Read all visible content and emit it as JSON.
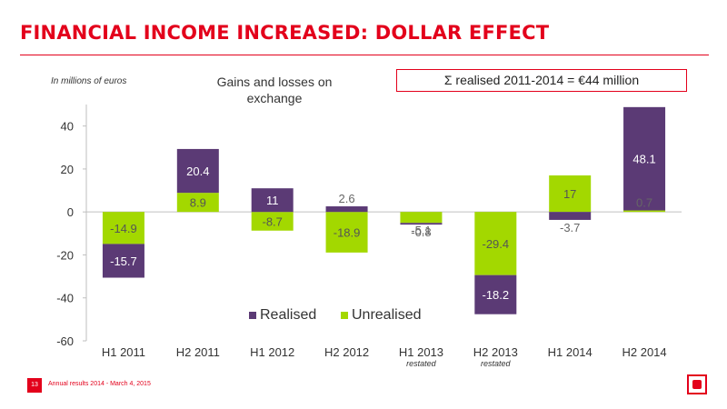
{
  "slide": {
    "title": "FINANCIAL INCOME INCREASED: DOLLAR EFFECT",
    "units_note": "In millions of euros",
    "summary": "Σ realised 2011-2014 = €44 million",
    "footer": {
      "page_number": "13",
      "text": "Annual results 2014 - March 4, 2015"
    }
  },
  "colors": {
    "realised": "#5b3a75",
    "unrealised": "#a3d800",
    "accent": "#e3001b"
  },
  "chart_data": {
    "type": "bar",
    "stacked": true,
    "title": "Gains and losses on exchange",
    "categories": [
      "H1 2011",
      "H2 2011",
      "H1 2012",
      "H2 2012",
      "H1 2013",
      "H2 2013",
      "H1 2014",
      "H2 2014"
    ],
    "category_notes": [
      "",
      "",
      "",
      "",
      "restated",
      "restated",
      "",
      ""
    ],
    "series": [
      {
        "name": "Realised",
        "values": [
          -15.7,
          20.4,
          11,
          2.6,
          -0.8,
          -18.2,
          -3.7,
          48.1
        ],
        "labels": [
          "-15.7",
          "20.4",
          "11",
          "2.6",
          "-0.8",
          "-18.2",
          "-3.7",
          "48.1"
        ]
      },
      {
        "name": "Unrealised",
        "values": [
          -14.9,
          8.9,
          -8.7,
          -18.9,
          -5.1,
          -29.4,
          17,
          0.7
        ],
        "labels": [
          "-14.9",
          "8.9",
          "-8.7",
          "-18.9",
          "-5.1",
          "-29.4",
          "17",
          "0.7"
        ]
      }
    ],
    "ylim": [
      -60,
      50
    ],
    "yticks": [
      -60,
      -40,
      -20,
      0,
      20,
      40
    ],
    "legend": "bottom-center",
    "grid": false
  }
}
